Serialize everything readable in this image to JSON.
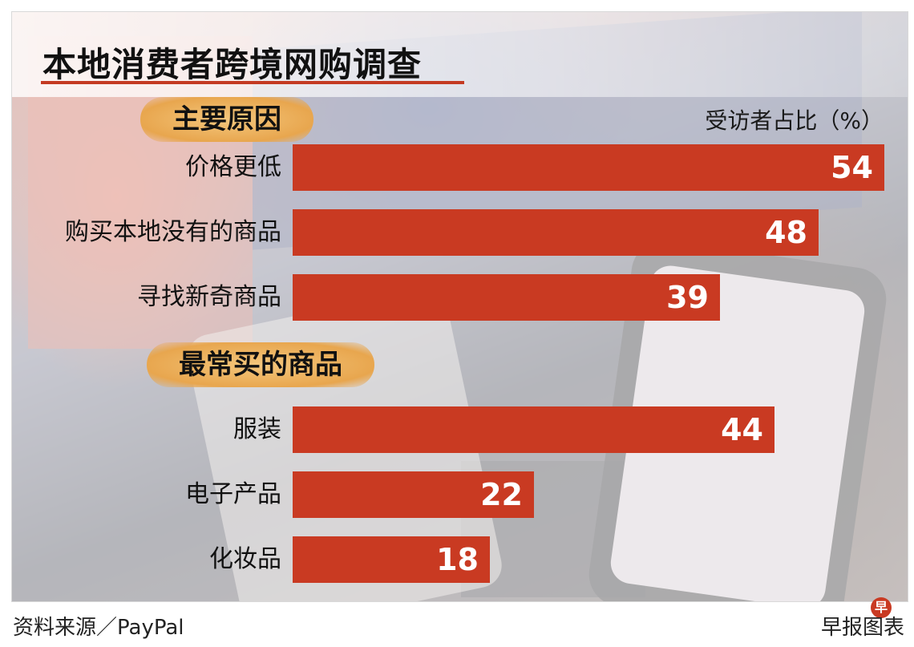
{
  "header": {
    "title": "本地消费者跨境网购调查",
    "unit": "受访者占比（%）"
  },
  "footer": {
    "source": "资料来源／PayPal",
    "credit": "早报图表",
    "badge": "早"
  },
  "colors": {
    "bar": "#c93a22",
    "section_label": "#e8a64e",
    "title_rule": "#c43a22"
  },
  "chart_data": {
    "type": "bar",
    "orientation": "horizontal",
    "title": "本地消费者跨境网购调查",
    "unit": "受访者占比（%）",
    "xlim": [
      0,
      55
    ],
    "grid": false,
    "legend": "none",
    "groups": [
      {
        "label": "主要原因",
        "categories": [
          "价格更低",
          "购买本地没有的商品",
          "寻找新奇商品"
        ],
        "values": [
          54,
          48,
          39
        ]
      },
      {
        "label": "最常买的商品",
        "categories": [
          "服装",
          "电子产品",
          "化妆品"
        ],
        "values": [
          44,
          22,
          18
        ]
      }
    ]
  }
}
